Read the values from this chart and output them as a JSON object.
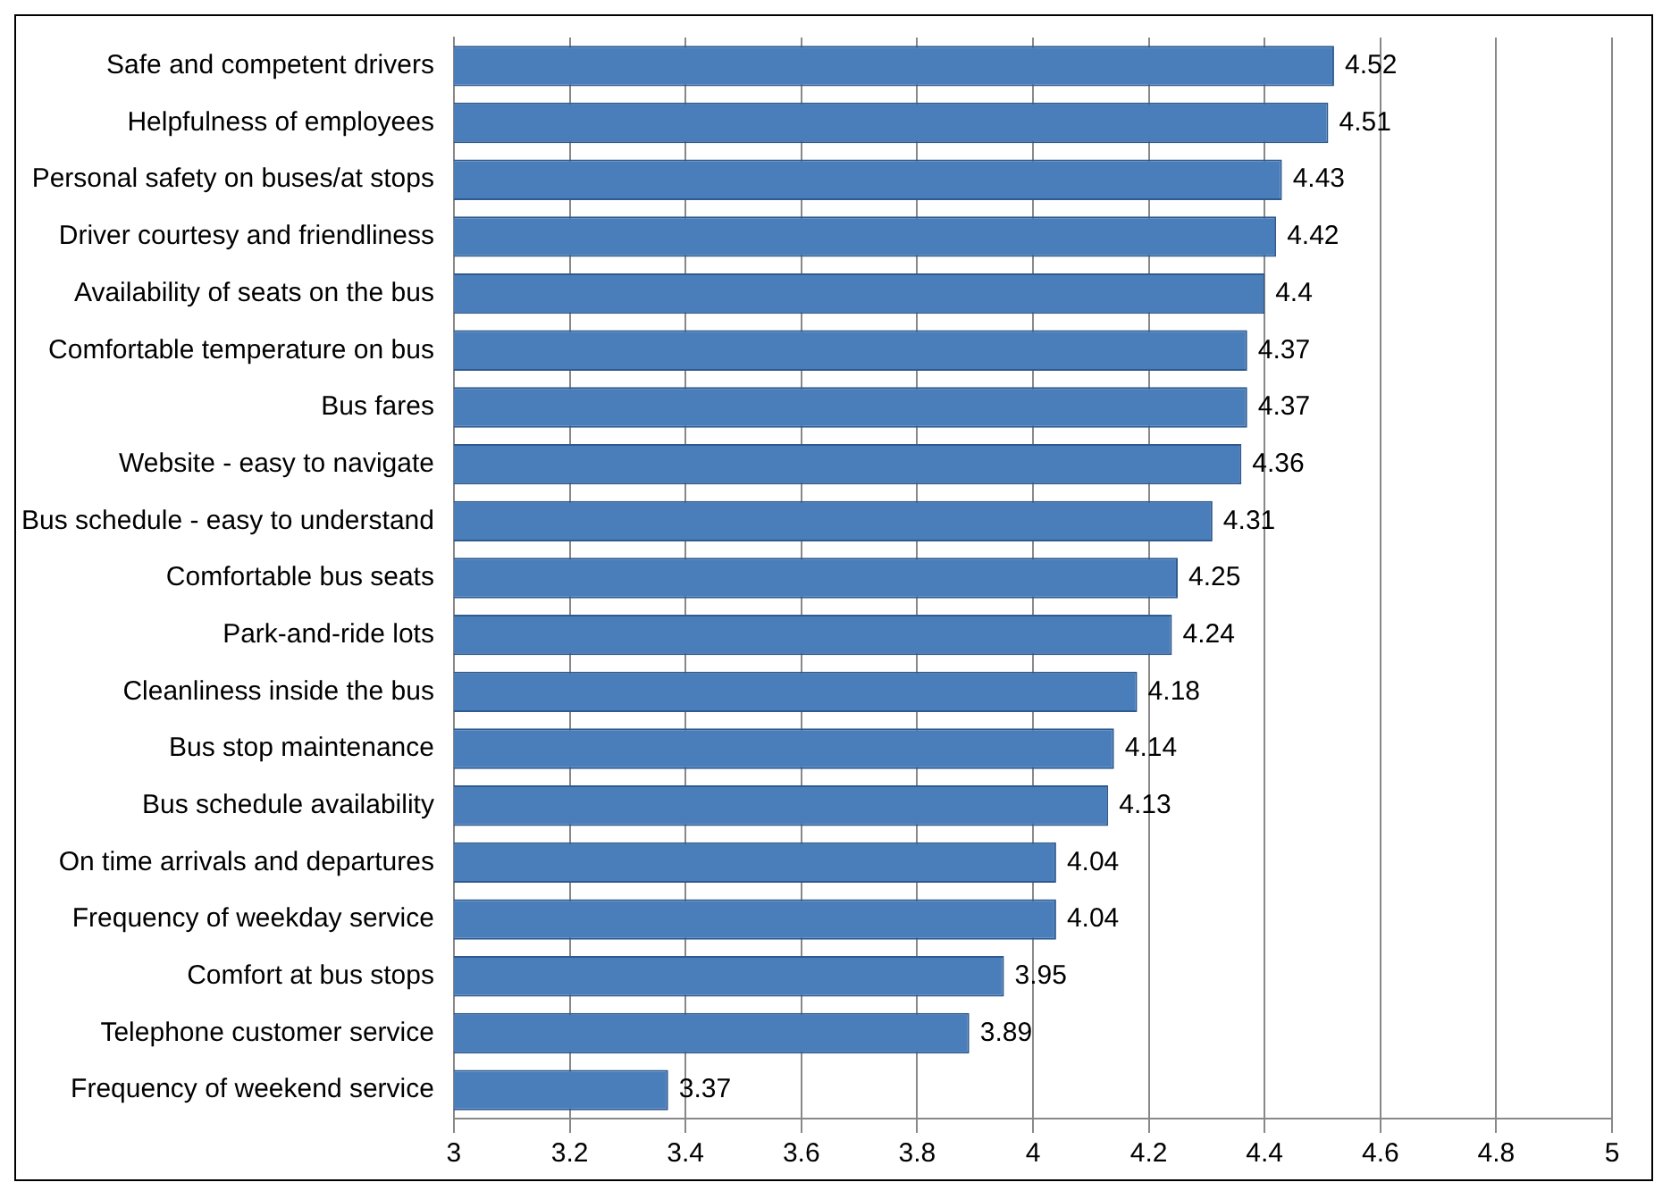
{
  "chart_data": {
    "type": "bar",
    "orientation": "horizontal",
    "categories": [
      "Safe and competent drivers",
      "Helpfulness of employees",
      "Personal safety on buses/at stops",
      "Driver courtesy and friendliness",
      "Availability of seats on the bus",
      "Comfortable temperature on bus",
      "Bus fares",
      "Website - easy to navigate",
      "Bus schedule - easy to understand",
      "Comfortable bus seats",
      "Park-and-ride lots",
      "Cleanliness inside the bus",
      "Bus stop maintenance",
      "Bus schedule availability",
      "On time arrivals and departures",
      "Frequency of weekday service",
      "Comfort at bus stops",
      "Telephone customer service",
      "Frequency of weekend service"
    ],
    "values": [
      4.52,
      4.51,
      4.43,
      4.42,
      4.4,
      4.37,
      4.37,
      4.36,
      4.31,
      4.25,
      4.24,
      4.18,
      4.14,
      4.13,
      4.04,
      4.04,
      3.95,
      3.89,
      3.37
    ],
    "color": "#4a7ebb",
    "xlim": [
      3,
      5
    ],
    "xticks": [
      3,
      3.2,
      3.4,
      3.6,
      3.8,
      4,
      4.2,
      4.4,
      4.6,
      4.8,
      5
    ],
    "grid": "x",
    "data_labels": true,
    "legend": false
  }
}
